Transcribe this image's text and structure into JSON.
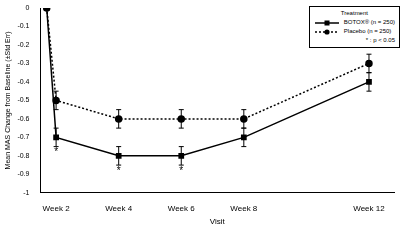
{
  "chart_data": {
    "type": "line",
    "x_label": "Visit",
    "y_label": "Mean MAS Change from Baseline (±Std Err)",
    "x": [
      1.7,
      2,
      4,
      6,
      8,
      12
    ],
    "xlim": [
      1.5,
      12.8
    ],
    "xticks": [
      {
        "value": 2,
        "label": "Week 2"
      },
      {
        "value": 4,
        "label": "Week 4"
      },
      {
        "value": 6,
        "label": "Week 6"
      },
      {
        "value": 8,
        "label": "Week 8"
      },
      {
        "value": 12,
        "label": "Week 12"
      }
    ],
    "ylim": [
      -1,
      0
    ],
    "yticks": [
      -1,
      -0.9,
      -0.8,
      -0.7,
      -0.6,
      -0.5,
      -0.4,
      -0.3,
      -0.2,
      -0.1,
      0
    ],
    "grid": false,
    "legend": "upper right",
    "legend_title": "Treatment",
    "legend_note": "* : p < 0.05",
    "series": [
      {
        "name": "BOTOX® (n = 250)",
        "color": "#000000",
        "marker": "square",
        "line_style": "solid",
        "values": [
          0,
          -0.7,
          -0.8,
          -0.8,
          -0.7,
          -0.4
        ],
        "errors": [
          0,
          0.05,
          0.05,
          0.05,
          0.05,
          0.05
        ]
      },
      {
        "name": "Placebo (n = 250)",
        "color": "#000000",
        "marker": "circle",
        "line_style": "dotted",
        "values": [
          0,
          -0.5,
          -0.6,
          -0.6,
          -0.6,
          -0.3
        ],
        "errors": [
          0,
          0.05,
          0.05,
          0.05,
          0.05,
          0.05
        ]
      }
    ],
    "annotations": [
      {
        "x": 2,
        "text": "*"
      },
      {
        "x": 4,
        "text": "*"
      },
      {
        "x": 6,
        "text": "*"
      }
    ]
  }
}
